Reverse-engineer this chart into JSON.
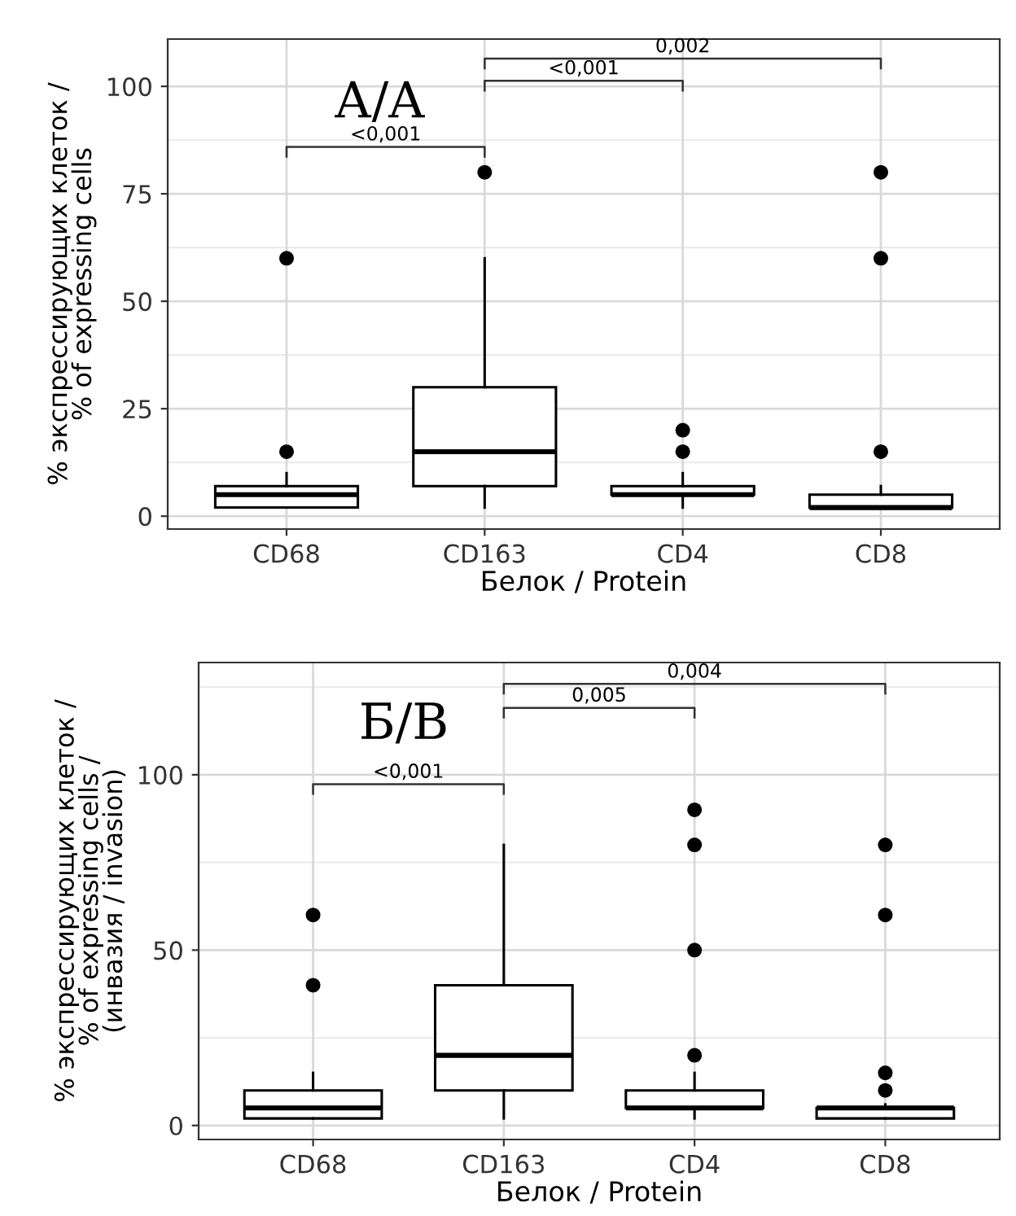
{
  "chart_data": [
    {
      "type": "box",
      "categories": [
        "CD68",
        "CD163",
        "CD4",
        "CD8"
      ],
      "xlabel": "Белок / Protein",
      "ylabel": "% экспрессирующих клеток /\n% of expressing cells",
      "ylim": [
        -3,
        111
      ],
      "yticks": [
        0,
        25,
        50,
        75,
        100
      ],
      "grid": true,
      "boxes": [
        {
          "low": 2,
          "q1": 2,
          "median": 5,
          "q3": 7,
          "high": 10,
          "outliers": [
            15,
            60
          ]
        },
        {
          "low": 2,
          "q1": 7,
          "median": 15,
          "q3": 30,
          "high": 60,
          "outliers": [
            80
          ]
        },
        {
          "low": 2,
          "q1": 5,
          "median": 5,
          "q3": 7,
          "high": 10,
          "outliers": [
            15,
            20
          ]
        },
        {
          "low": 2,
          "q1": 2,
          "median": 2,
          "q3": 5,
          "high": 7,
          "outliers": [
            15,
            60,
            80
          ]
        }
      ],
      "annotations": [
        "А/A",
        "<0,001",
        "<0,001",
        "0,002"
      ]
    },
    {
      "type": "box",
      "categories": [
        "CD68",
        "CD163",
        "CD4",
        "CD8"
      ],
      "xlabel": "Белок / Protein",
      "ylabel": "% экспрессирующих клеток /\n% of expressing cells /\n(инвазия / invasion)",
      "ylim": [
        -4,
        132
      ],
      "yticks": [
        0,
        50,
        100
      ],
      "grid": true,
      "boxes": [
        {
          "low": 2,
          "q1": 2,
          "median": 5,
          "q3": 10,
          "high": 15,
          "outliers": [
            40,
            60
          ]
        },
        {
          "low": 2,
          "q1": 10,
          "median": 20,
          "q3": 40,
          "high": 80
        },
        {
          "low": 2,
          "q1": 5,
          "median": 5,
          "q3": 10,
          "high": 15,
          "outliers": [
            20,
            50,
            80,
            90
          ]
        },
        {
          "low": 2,
          "q1": 2,
          "median": 5,
          "q3": 5,
          "high": 6,
          "outliers": [
            10,
            15,
            60,
            80
          ]
        }
      ],
      "annotations": [
        "Б/B",
        "<0,001",
        "0,005",
        "0,004"
      ]
    }
  ]
}
